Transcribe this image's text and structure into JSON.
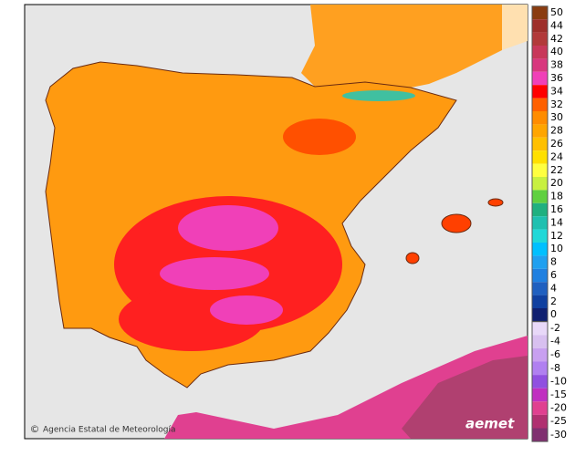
{
  "credit": "Agencia Estatal de Meteorología",
  "logo": "aemet",
  "legend": [
    {
      "label": 50,
      "color": "#8a3c10"
    },
    {
      "label": 44,
      "color": "#9e2f2a"
    },
    {
      "label": 42,
      "color": "#b23a3a"
    },
    {
      "label": 40,
      "color": "#c8385a"
    },
    {
      "label": 38,
      "color": "#d8387e"
    },
    {
      "label": 36,
      "color": "#f040b8"
    },
    {
      "label": 34,
      "color": "#ff0000"
    },
    {
      "label": 32,
      "color": "#ff6000"
    },
    {
      "label": 30,
      "color": "#ff8c00"
    },
    {
      "label": 28,
      "color": "#ffa500"
    },
    {
      "label": 26,
      "color": "#ffc000"
    },
    {
      "label": 24,
      "color": "#ffe000"
    },
    {
      "label": 22,
      "color": "#ffff40"
    },
    {
      "label": 20,
      "color": "#c8f040"
    },
    {
      "label": 18,
      "color": "#60d040"
    },
    {
      "label": 16,
      "color": "#20b080"
    },
    {
      "label": 14,
      "color": "#20c0b0"
    },
    {
      "label": 12,
      "color": "#20d8d8"
    },
    {
      "label": 10,
      "color": "#00c0ff"
    },
    {
      "label": 8,
      "color": "#20a0f0"
    },
    {
      "label": 6,
      "color": "#2080e0"
    },
    {
      "label": 4,
      "color": "#2060c0"
    },
    {
      "label": 2,
      "color": "#1040a0"
    },
    {
      "label": 0,
      "color": "#102070"
    },
    {
      "label": -2,
      "color": "#e8d8f8"
    },
    {
      "label": -4,
      "color": "#d8c0f0"
    },
    {
      "label": -6,
      "color": "#c8a0f0"
    },
    {
      "label": -8,
      "color": "#b080f0"
    },
    {
      "label": -10,
      "color": "#9050e0"
    },
    {
      "label": -15,
      "color": "#c030c0"
    },
    {
      "label": -20,
      "color": "#e04090"
    },
    {
      "label": -25,
      "color": "#b03070"
    },
    {
      "label": -30,
      "color": "#803070"
    }
  ]
}
